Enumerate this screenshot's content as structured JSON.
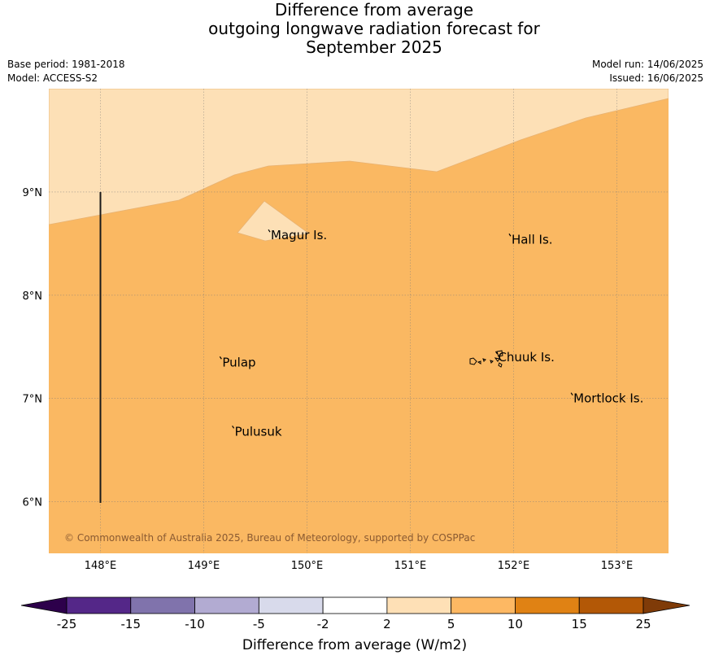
{
  "title": {
    "line1": "Difference from average",
    "line2": "outgoing longwave radiation forecast for",
    "line3": "September 2025"
  },
  "meta_left": {
    "base_period": "Base period: 1981-2018",
    "model": "Model: ACCESS-S2"
  },
  "meta_right": {
    "model_run": "Model run: 14/06/2025",
    "issued": "Issued: 16/06/2025"
  },
  "map": {
    "lon_range": [
      147.5,
      153.5
    ],
    "lat_range": [
      5.5,
      10.0
    ],
    "lon_ticks": [
      "148°E",
      "149°E",
      "150°E",
      "151°E",
      "152°E",
      "153°E"
    ],
    "lat_ticks": [
      "9°N",
      "8°N",
      "7°N",
      "6°N"
    ],
    "places": [
      {
        "name": "Magur Is.",
        "lon": 149.65,
        "lat": 8.58
      },
      {
        "name": "Hall Is.",
        "lon": 151.98,
        "lat": 8.54
      },
      {
        "name": "Pulap",
        "lon": 149.18,
        "lat": 7.35
      },
      {
        "name": "Chuuk Is.",
        "lon": 151.85,
        "lat": 7.4
      },
      {
        "name": "Mortlock Is.",
        "lon": 152.58,
        "lat": 7.0
      },
      {
        "name": "Pulusuk",
        "lon": 149.3,
        "lat": 6.68
      }
    ],
    "field_colors": {
      "band_2_5": "#fde0b6",
      "band_5_10": "#fab862"
    },
    "copyright": "© Commonwealth of Australia 2025, Bureau of Meteorology, supported by COSPPac"
  },
  "colorbar": {
    "labels": [
      "-25",
      "-15",
      "-10",
      "-5",
      "-2",
      "2",
      "5",
      "10",
      "15",
      "25"
    ],
    "colors": [
      "#542788",
      "#8073ac",
      "#b2abd2",
      "#d8daeb",
      "#ffffff",
      "#fee0b6",
      "#fdb863",
      "#e08214",
      "#b35806"
    ],
    "under_color": "#2d004b",
    "over_color": "#7f3b08",
    "title": "Difference from average (W/m2)"
  }
}
